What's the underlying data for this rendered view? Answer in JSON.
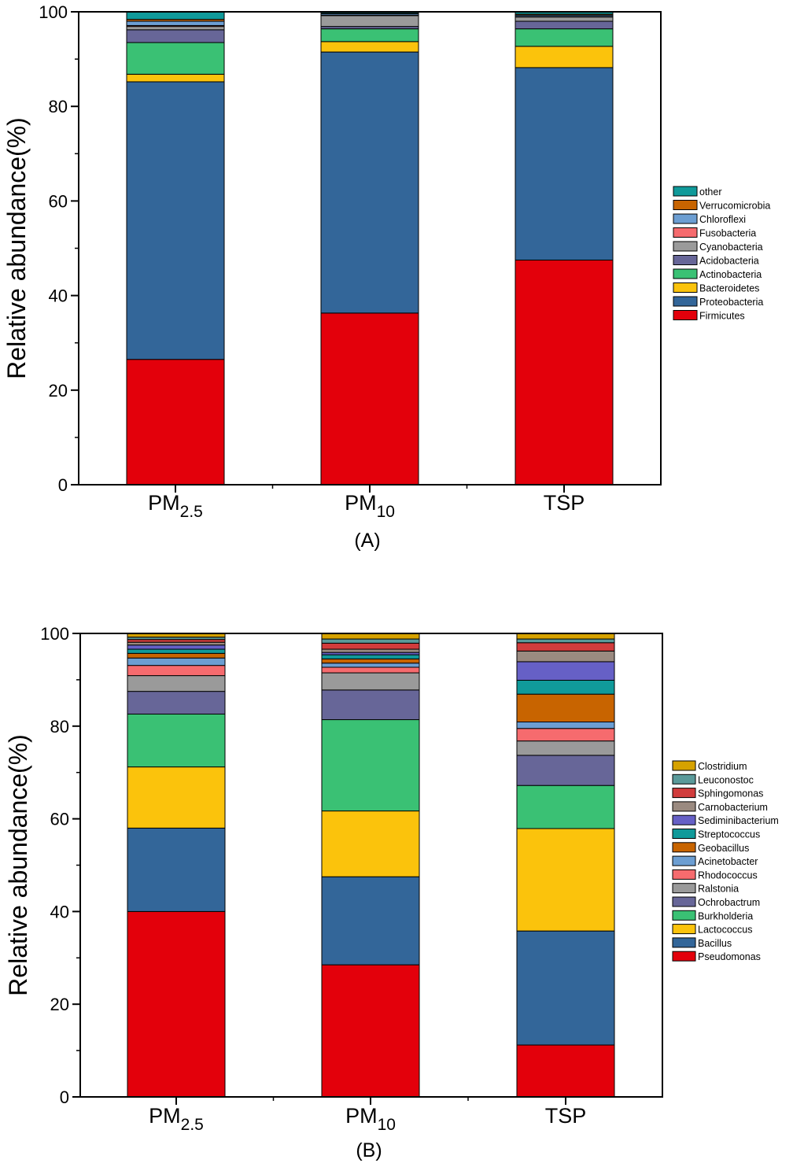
{
  "chart_data": [
    {
      "type": "bar",
      "stacked": true,
      "panel_label": "(A)",
      "title": "",
      "xlabel": "",
      "ylabel": "Relative abundance(%)",
      "ylim": [
        0,
        100
      ],
      "yticks": [
        0,
        20,
        40,
        60,
        80,
        100
      ],
      "categories": [
        {
          "base": "PM",
          "sub": "2.5"
        },
        {
          "base": "PM",
          "sub": "10"
        },
        {
          "base": "TSP",
          "sub": ""
        }
      ],
      "series": [
        {
          "name": "Firmicutes",
          "color": "#e3000b",
          "values": [
            26.5,
            36.3,
            47.5
          ]
        },
        {
          "name": "Proteobacteria",
          "color": "#336699",
          "values": [
            58.7,
            55.2,
            40.7
          ]
        },
        {
          "name": "Bacteroidetes",
          "color": "#fbc30c",
          "values": [
            1.6,
            2.2,
            4.5
          ]
        },
        {
          "name": "Actinobacteria",
          "color": "#3ac174",
          "values": [
            6.7,
            2.7,
            3.7
          ]
        },
        {
          "name": "Acidobacteria",
          "color": "#676698",
          "values": [
            2.7,
            0.5,
            1.6
          ]
        },
        {
          "name": "Cyanobacteria",
          "color": "#9a9a9a",
          "values": [
            0.7,
            2.3,
            0.9
          ]
        },
        {
          "name": "Fusobacteria",
          "color": "#f66b6e",
          "values": [
            0.2,
            0.1,
            0.1
          ]
        },
        {
          "name": "Chloroflexi",
          "color": "#6c9ed2",
          "values": [
            0.9,
            0.3,
            0.3
          ]
        },
        {
          "name": "Verrucomicrobia",
          "color": "#c86400",
          "values": [
            0.4,
            0.1,
            0.2
          ]
        },
        {
          "name": "other",
          "color": "#109a9a",
          "values": [
            1.6,
            0.3,
            0.5
          ]
        }
      ],
      "legend_position": "right"
    },
    {
      "type": "bar",
      "stacked": true,
      "panel_label": "(B)",
      "title": "",
      "xlabel": "",
      "ylabel": "Relative abundance(%)",
      "ylim": [
        0,
        100
      ],
      "yticks": [
        0,
        20,
        40,
        60,
        80,
        100
      ],
      "categories": [
        {
          "base": "PM",
          "sub": "2.5"
        },
        {
          "base": "PM",
          "sub": "10"
        },
        {
          "base": "TSP",
          "sub": ""
        }
      ],
      "series": [
        {
          "name": "Pseudomonas",
          "color": "#e3000b",
          "values": [
            40.0,
            28.5,
            11.2
          ]
        },
        {
          "name": "Bacillus",
          "color": "#336699",
          "values": [
            18.0,
            19.0,
            24.6
          ]
        },
        {
          "name": "Lactococcus",
          "color": "#fbc30c",
          "values": [
            13.2,
            14.2,
            22.1
          ]
        },
        {
          "name": "Burkholderia",
          "color": "#3ac174",
          "values": [
            11.4,
            19.7,
            9.3
          ]
        },
        {
          "name": "Ochrobactrum",
          "color": "#676698",
          "values": [
            4.9,
            6.4,
            6.5
          ]
        },
        {
          "name": "Ralstonia",
          "color": "#9a9a9a",
          "values": [
            3.4,
            3.7,
            3.1
          ]
        },
        {
          "name": "Rhodococcus",
          "color": "#f66b6e",
          "values": [
            2.2,
            1.2,
            2.7
          ]
        },
        {
          "name": "Acinetobacter",
          "color": "#6c9ed2",
          "values": [
            1.6,
            0.9,
            1.4
          ]
        },
        {
          "name": "Geobacillus",
          "color": "#c86400",
          "values": [
            1.0,
            0.9,
            6.0
          ]
        },
        {
          "name": "Streptococcus",
          "color": "#109a9a",
          "values": [
            0.9,
            0.9,
            3.0
          ]
        },
        {
          "name": "Sediminibacterium",
          "color": "#6660c6",
          "values": [
            0.9,
            0.5,
            4.0
          ]
        },
        {
          "name": "Carnobacterium",
          "color": "#9a8a80",
          "values": [
            0.6,
            0.7,
            2.3
          ]
        },
        {
          "name": "Sphingomonas",
          "color": "#d13c3c",
          "values": [
            0.6,
            1.3,
            1.8
          ]
        },
        {
          "name": "Leuconostoc",
          "color": "#5a9a9a",
          "values": [
            0.5,
            0.9,
            0.8
          ]
        },
        {
          "name": "Clostridium",
          "color": "#d6a200",
          "values": [
            0.8,
            1.2,
            1.2
          ]
        }
      ],
      "legend_position": "right"
    }
  ]
}
